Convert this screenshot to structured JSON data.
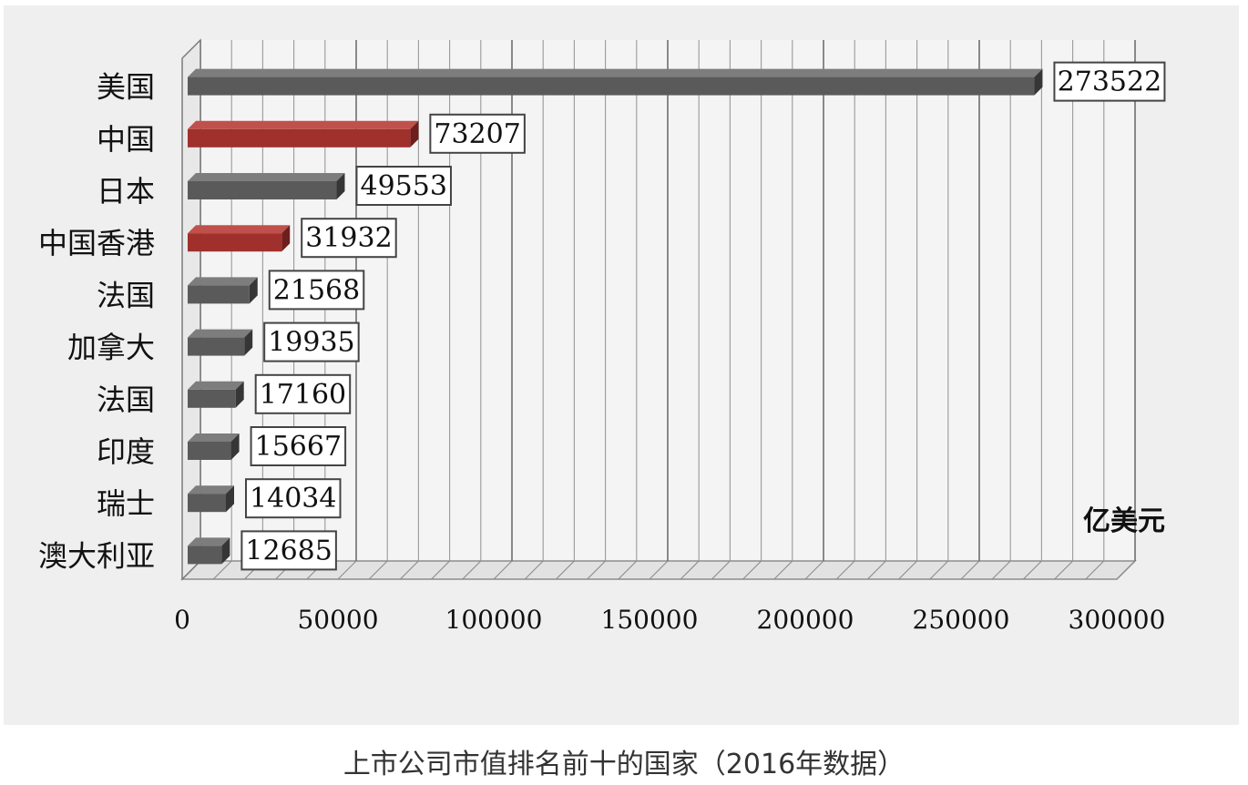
{
  "caption": "上市公司市值排名前十的国家（2016年数据）",
  "colors": {
    "default_bar": "#5a5a5a",
    "highlight_bar": "#a0302c",
    "panel_background": "#efefef"
  },
  "chart_data": {
    "type": "bar",
    "orientation": "horizontal",
    "style": "3d",
    "title": "",
    "xlabel": "",
    "ylabel": "",
    "unit_label": "亿美元",
    "categories": [
      "美国",
      "中国",
      "日本",
      "中国香港",
      "法国",
      "加拿大",
      "法国",
      "印度",
      "瑞士",
      "澳大利亚"
    ],
    "values": [
      273522,
      73207,
      49553,
      31932,
      21568,
      19935,
      17160,
      15667,
      14034,
      12685
    ],
    "highlighted": [
      false,
      true,
      false,
      true,
      false,
      false,
      false,
      false,
      false,
      false
    ],
    "xlim": [
      0,
      300000
    ],
    "major_ticks": [
      0,
      50000,
      100000,
      150000,
      200000,
      250000,
      300000
    ],
    "minor_step": 10000,
    "grid": true,
    "data_labels": true
  }
}
